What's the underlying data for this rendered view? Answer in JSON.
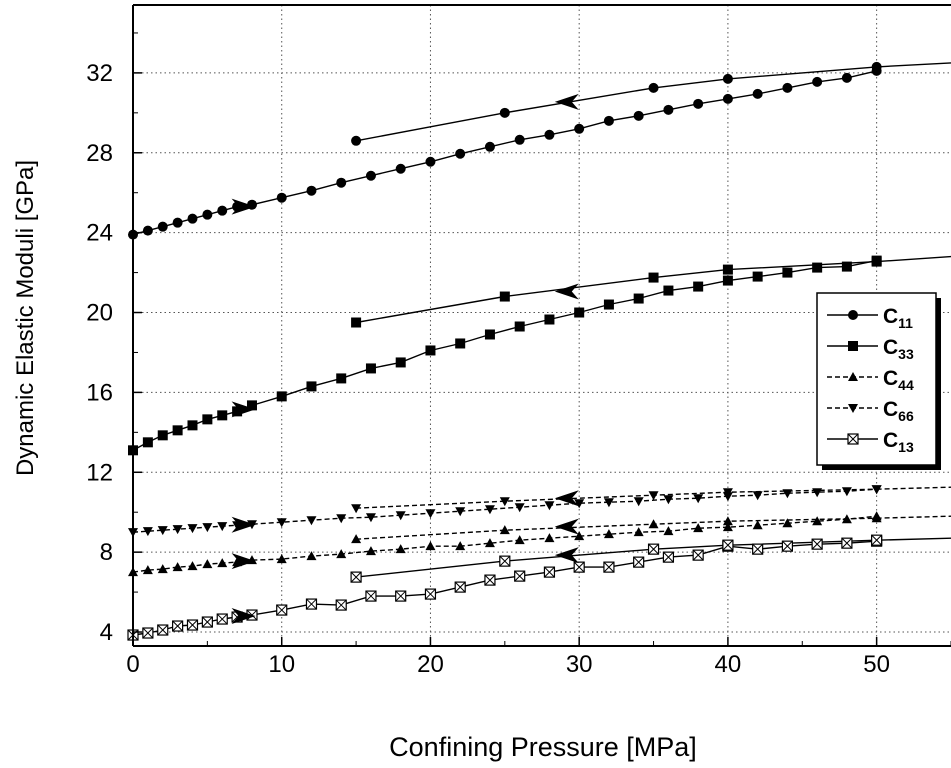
{
  "chart_data": {
    "type": "line",
    "title": "",
    "xlabel": "Confining Pressure [MPa]",
    "ylabel": "Dynamic Elastic Moduli  [GPa]",
    "xlim": [
      0,
      55
    ],
    "ylim": [
      3.3,
      35.4
    ],
    "xticks": [
      "0",
      "10",
      "20",
      "30",
      "40",
      "50"
    ],
    "yticks": [
      "4",
      "8",
      "12",
      "16",
      "20",
      "24",
      "28",
      "32"
    ],
    "grid": true,
    "legend_position": "right",
    "series": [
      {
        "name": "C11",
        "name_main": "C",
        "name_sub": "11",
        "marker": "circle",
        "dash": "solid",
        "loading": {
          "x": [
            0,
            1,
            2,
            3,
            4,
            5,
            6,
            7,
            8,
            10,
            12,
            14,
            16,
            18,
            20,
            22,
            24,
            26,
            28,
            30,
            32,
            34,
            36,
            38,
            40,
            42,
            44,
            46,
            48,
            50
          ],
          "y": [
            23.9,
            24.1,
            24.3,
            24.5,
            24.7,
            24.9,
            25.1,
            25.3,
            25.4,
            25.75,
            26.1,
            26.5,
            26.85,
            27.2,
            27.55,
            27.95,
            28.3,
            28.65,
            28.9,
            29.2,
            29.6,
            29.85,
            30.15,
            30.45,
            30.7,
            30.95,
            31.25,
            31.55,
            31.75,
            32.1
          ]
        },
        "unloading": {
          "x": [
            15,
            25,
            35,
            40,
            50
          ],
          "y": [
            28.6,
            30.0,
            31.25,
            31.7,
            32.3
          ]
        },
        "unloading_extension": {
          "x": [
            50,
            55
          ],
          "y": [
            32.3,
            32.5
          ]
        }
      },
      {
        "name": "C33",
        "name_main": "C",
        "name_sub": "33",
        "marker": "square",
        "dash": "solid",
        "loading": {
          "x": [
            0,
            1,
            2,
            3,
            4,
            5,
            6,
            7,
            8,
            10,
            12,
            14,
            16,
            18,
            20,
            22,
            24,
            26,
            28,
            30,
            32,
            34,
            36,
            38,
            40,
            42,
            44,
            46,
            48,
            50
          ],
          "y": [
            13.1,
            13.5,
            13.85,
            14.1,
            14.35,
            14.65,
            14.85,
            15.05,
            15.35,
            15.8,
            16.3,
            16.7,
            17.2,
            17.5,
            18.1,
            18.45,
            18.9,
            19.3,
            19.65,
            20.0,
            20.4,
            20.7,
            21.1,
            21.3,
            21.6,
            21.8,
            22.0,
            22.25,
            22.3,
            22.6
          ]
        },
        "unloading": {
          "x": [
            15,
            25,
            35,
            40,
            50
          ],
          "y": [
            19.5,
            20.8,
            21.75,
            22.15,
            22.55
          ]
        },
        "unloading_extension": {
          "x": [
            50,
            55
          ],
          "y": [
            22.55,
            22.8
          ]
        }
      },
      {
        "name": "C44",
        "name_main": "C",
        "name_sub": "44",
        "marker": "triangle-up",
        "dash": "dashed",
        "loading": {
          "x": [
            0,
            1,
            2,
            3,
            4,
            5,
            6,
            7,
            8,
            10,
            12,
            14,
            16,
            18,
            20,
            22,
            24,
            26,
            28,
            30,
            32,
            34,
            36,
            38,
            40,
            42,
            44,
            46,
            48,
            50
          ],
          "y": [
            7.0,
            7.1,
            7.15,
            7.25,
            7.3,
            7.4,
            7.45,
            7.5,
            7.6,
            7.65,
            7.8,
            7.9,
            8.05,
            8.15,
            8.3,
            8.3,
            8.45,
            8.6,
            8.7,
            8.8,
            8.9,
            9.0,
            9.05,
            9.2,
            9.25,
            9.35,
            9.45,
            9.55,
            9.65,
            9.8
          ]
        },
        "unloading": {
          "x": [
            15,
            25,
            35,
            40,
            50
          ],
          "y": [
            8.65,
            9.1,
            9.4,
            9.55,
            9.7
          ]
        },
        "unloading_extension": {
          "x": [
            50,
            55
          ],
          "y": [
            9.7,
            9.8
          ]
        }
      },
      {
        "name": "C66",
        "name_main": "C",
        "name_sub": "66",
        "marker": "triangle-down",
        "dash": "dashed",
        "loading": {
          "x": [
            0,
            1,
            2,
            3,
            4,
            5,
            6,
            7,
            8,
            10,
            12,
            14,
            16,
            18,
            20,
            22,
            24,
            26,
            28,
            30,
            32,
            34,
            36,
            38,
            40,
            42,
            44,
            46,
            48,
            50
          ],
          "y": [
            9.0,
            9.05,
            9.1,
            9.15,
            9.2,
            9.25,
            9.3,
            9.35,
            9.4,
            9.5,
            9.6,
            9.7,
            9.75,
            9.85,
            9.95,
            10.05,
            10.15,
            10.25,
            10.35,
            10.45,
            10.5,
            10.55,
            10.65,
            10.7,
            10.8,
            10.85,
            10.95,
            11.0,
            11.05,
            11.15
          ]
        },
        "unloading": {
          "x": [
            15,
            25,
            35,
            40,
            50
          ],
          "y": [
            10.2,
            10.55,
            10.85,
            11.0,
            11.15
          ]
        },
        "unloading_extension": {
          "x": [
            50,
            55
          ],
          "y": [
            11.15,
            11.25
          ]
        }
      },
      {
        "name": "C13",
        "name_main": "C",
        "name_sub": "13",
        "marker": "square-x",
        "dash": "solid",
        "loading": {
          "x": [
            0,
            1,
            2,
            3,
            4,
            5,
            6,
            7,
            8,
            10,
            12,
            14,
            16,
            18,
            20,
            22,
            24,
            26,
            28,
            30,
            32,
            34,
            36,
            38,
            40,
            42,
            44,
            46,
            48,
            50
          ],
          "y": [
            3.85,
            3.95,
            4.1,
            4.3,
            4.35,
            4.5,
            4.65,
            4.75,
            4.85,
            5.1,
            5.4,
            5.35,
            5.8,
            5.8,
            5.9,
            6.25,
            6.6,
            6.8,
            7.0,
            7.25,
            7.25,
            7.5,
            7.75,
            7.85,
            8.3,
            8.15,
            8.3,
            8.4,
            8.45,
            8.55
          ]
        },
        "unloading": {
          "x": [
            15,
            25,
            35,
            40,
            50
          ],
          "y": [
            6.75,
            7.55,
            8.15,
            8.35,
            8.6
          ]
        },
        "unloading_extension": {
          "x": [
            50,
            55
          ],
          "y": [
            8.6,
            8.7
          ]
        }
      }
    ],
    "direction_arrows": [
      {
        "x": 7.3,
        "y": 25.3,
        "dir": "right"
      },
      {
        "x": 29.3,
        "y": 30.55,
        "dir": "left"
      },
      {
        "x": 7.3,
        "y": 15.15,
        "dir": "right"
      },
      {
        "x": 29.3,
        "y": 21.05,
        "dir": "left"
      },
      {
        "x": 7.3,
        "y": 9.37,
        "dir": "right"
      },
      {
        "x": 7.3,
        "y": 7.55,
        "dir": "right"
      },
      {
        "x": 7.3,
        "y": 4.8,
        "dir": "right"
      },
      {
        "x": 29.3,
        "y": 10.7,
        "dir": "left"
      },
      {
        "x": 29.3,
        "y": 9.28,
        "dir": "left"
      },
      {
        "x": 29.3,
        "y": 7.85,
        "dir": "left"
      }
    ]
  }
}
